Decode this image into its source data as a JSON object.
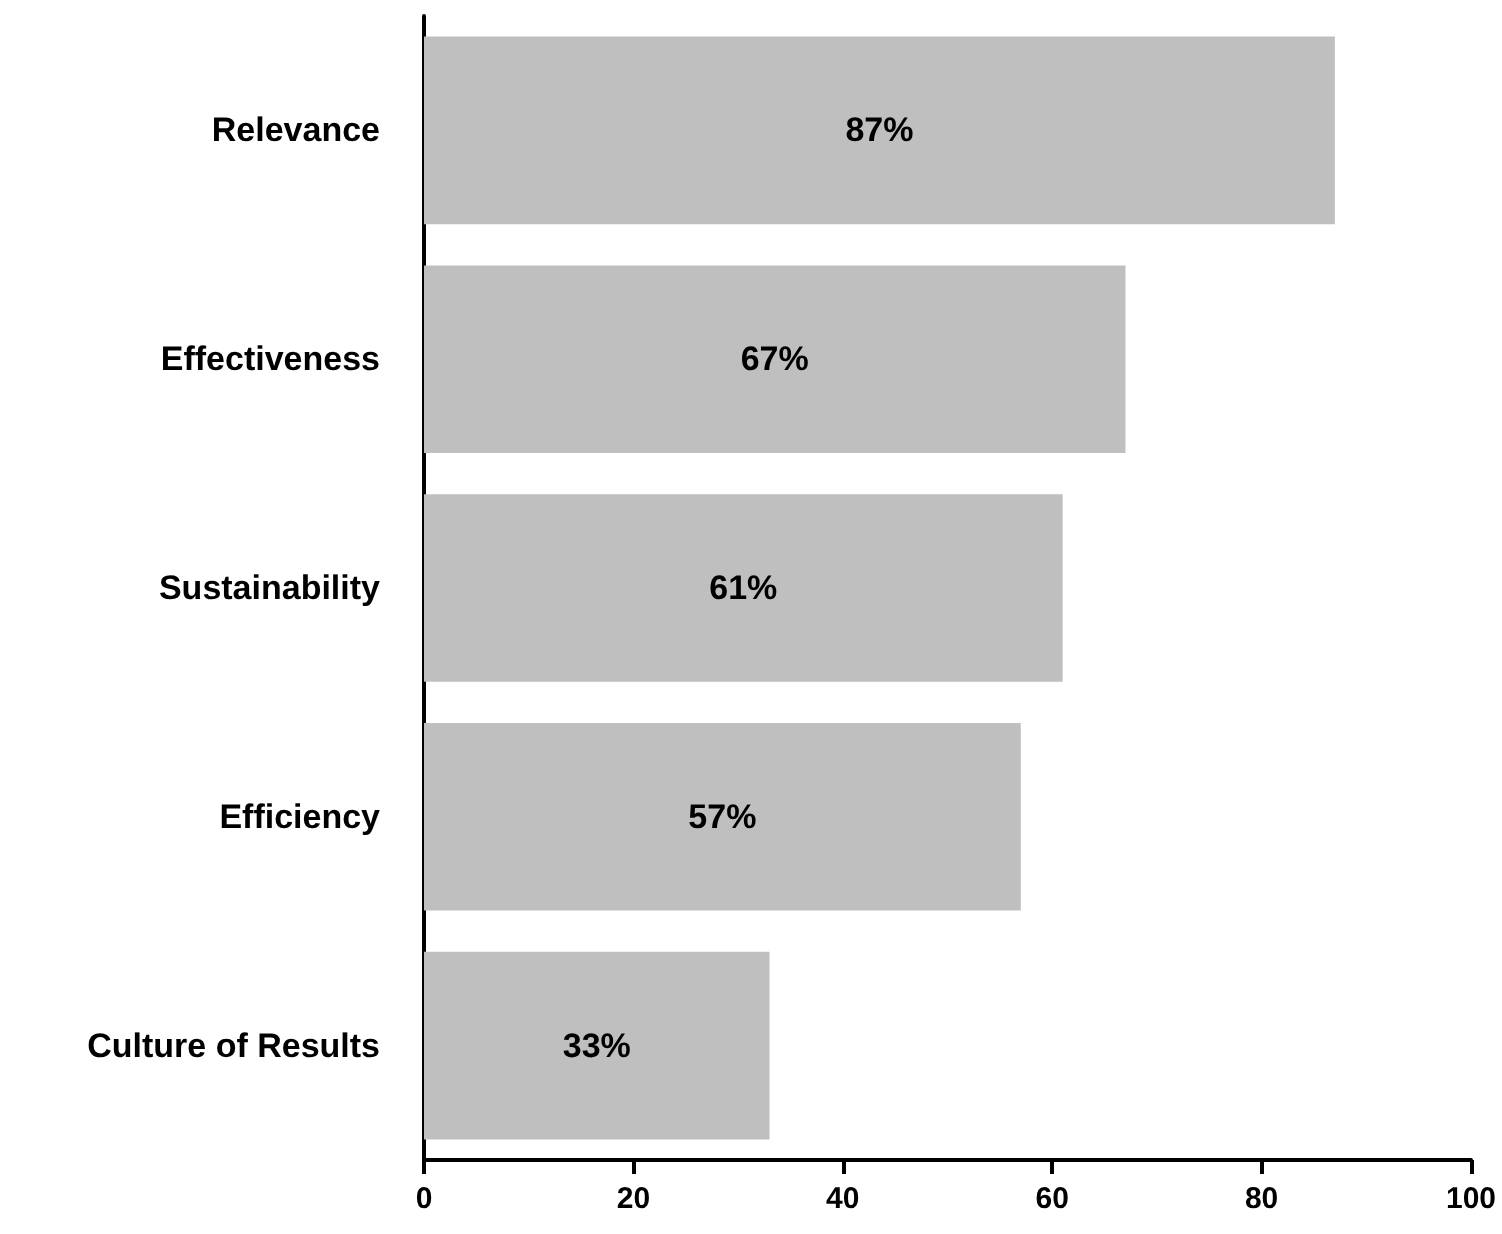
{
  "chart_data": {
    "type": "bar",
    "orientation": "horizontal",
    "categories": [
      "Relevance",
      "Effectiveness",
      "Sustainability",
      "Efficiency",
      "Culture of Results"
    ],
    "values": [
      87,
      67,
      61,
      57,
      33
    ],
    "value_labels": [
      "87%",
      "67%",
      "61%",
      "57%",
      "33%"
    ],
    "color": "#bfbfbf",
    "xlim": [
      0,
      100
    ],
    "xticks": [
      0,
      20,
      40,
      60,
      80,
      100
    ],
    "grid": false
  }
}
